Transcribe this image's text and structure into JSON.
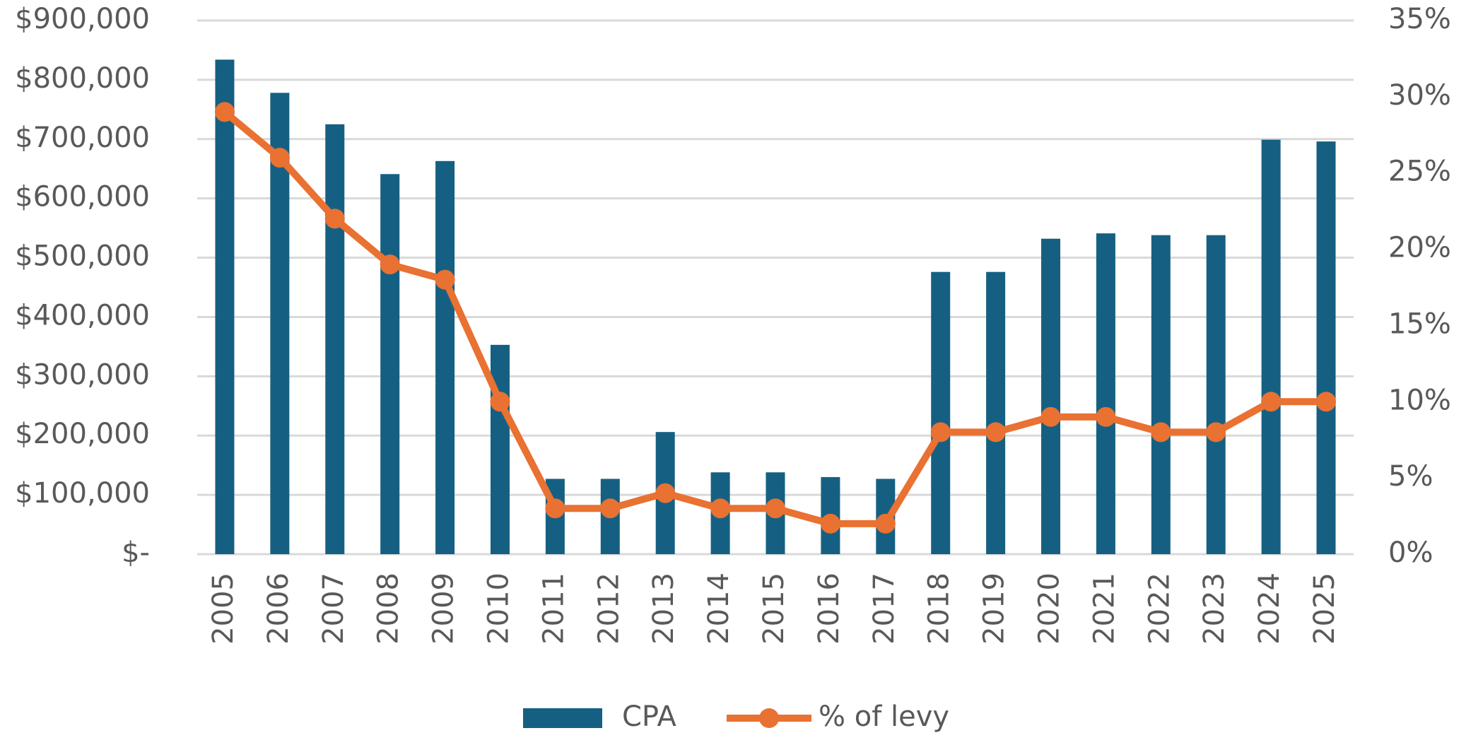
{
  "chart_data": {
    "type": "bar",
    "categories": [
      "2005",
      "2006",
      "2007",
      "2008",
      "2009",
      "2010",
      "2011",
      "2012",
      "2013",
      "2014",
      "2015",
      "2016",
      "2017",
      "2018",
      "2019",
      "2020",
      "2021",
      "2022",
      "2023",
      "2024",
      "2025"
    ],
    "series": [
      {
        "name": "CPA",
        "type": "bar",
        "color": "#156082",
        "values": [
          834000,
          778000,
          725000,
          641000,
          663000,
          353000,
          127000,
          127000,
          206000,
          138000,
          138000,
          130000,
          127000,
          476000,
          476000,
          532000,
          541000,
          538000,
          538000,
          699000,
          696000
        ]
      },
      {
        "name": "% of levy",
        "type": "line",
        "axis": "y2",
        "color": "#e97132",
        "values": [
          29,
          26,
          22,
          19,
          18,
          10,
          3,
          3,
          4,
          3,
          3,
          2,
          2,
          8,
          8,
          9,
          9,
          8,
          8,
          10,
          10
        ]
      }
    ],
    "ylim": [
      0,
      900000
    ],
    "yticks": [
      {
        "value": 0,
        "label": "$-"
      },
      {
        "value": 100000,
        "label": "$100,000"
      },
      {
        "value": 200000,
        "label": "$200,000"
      },
      {
        "value": 300000,
        "label": "$300,000"
      },
      {
        "value": 400000,
        "label": "$400,000"
      },
      {
        "value": 500000,
        "label": "$500,000"
      },
      {
        "value": 600000,
        "label": "$600,000"
      },
      {
        "value": 700000,
        "label": "$700,000"
      },
      {
        "value": 800000,
        "label": "$800,000"
      },
      {
        "value": 900000,
        "label": "$900,000"
      }
    ],
    "y2lim": [
      0,
      35
    ],
    "y2ticks": [
      {
        "value": 0,
        "label": "0%"
      },
      {
        "value": 5,
        "label": "5%"
      },
      {
        "value": 10,
        "label": "10%"
      },
      {
        "value": 15,
        "label": "15%"
      },
      {
        "value": 20,
        "label": "20%"
      },
      {
        "value": 25,
        "label": "25%"
      },
      {
        "value": 30,
        "label": "30%"
      },
      {
        "value": 35,
        "label": "35%"
      }
    ],
    "grid": true,
    "legend": "bottom"
  }
}
